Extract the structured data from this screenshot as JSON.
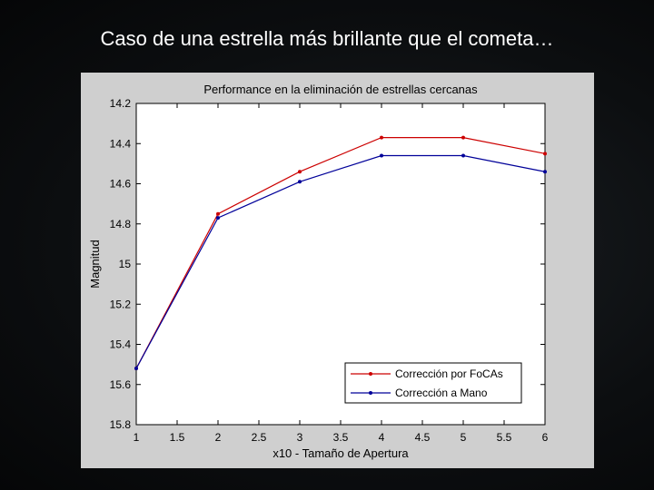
{
  "slide": {
    "title": "Caso de una estrella más brillante que el cometa…"
  },
  "chart_data": {
    "type": "line",
    "title": "Performance en la eliminación de estrellas cercanas",
    "xlabel": "x10 - Tamaño de Apertura",
    "ylabel": "Magnitud",
    "xlim": [
      1,
      6
    ],
    "ylim": [
      14.2,
      15.8
    ],
    "y_reversed": true,
    "xticks": [
      "1",
      "1.5",
      "2",
      "2.5",
      "3",
      "3.5",
      "4",
      "4.5",
      "5",
      "5.5",
      "6"
    ],
    "yticks": [
      "14.2",
      "14.4",
      "14.6",
      "14.8",
      "15",
      "15.2",
      "15.4",
      "15.6",
      "15.8"
    ],
    "grid": false,
    "legend_position": "bottom-right",
    "series": [
      {
        "name": "Corrección por FoCAs",
        "color": "#cc0000",
        "x": [
          1,
          2,
          3,
          4,
          5,
          6
        ],
        "y": [
          15.52,
          14.75,
          14.54,
          14.37,
          14.37,
          14.45
        ]
      },
      {
        "name": "Corrección a Mano",
        "color": "#000099",
        "x": [
          1,
          2,
          3,
          4,
          5,
          6
        ],
        "y": [
          15.52,
          14.77,
          14.59,
          14.46,
          14.46,
          14.54
        ]
      }
    ]
  }
}
